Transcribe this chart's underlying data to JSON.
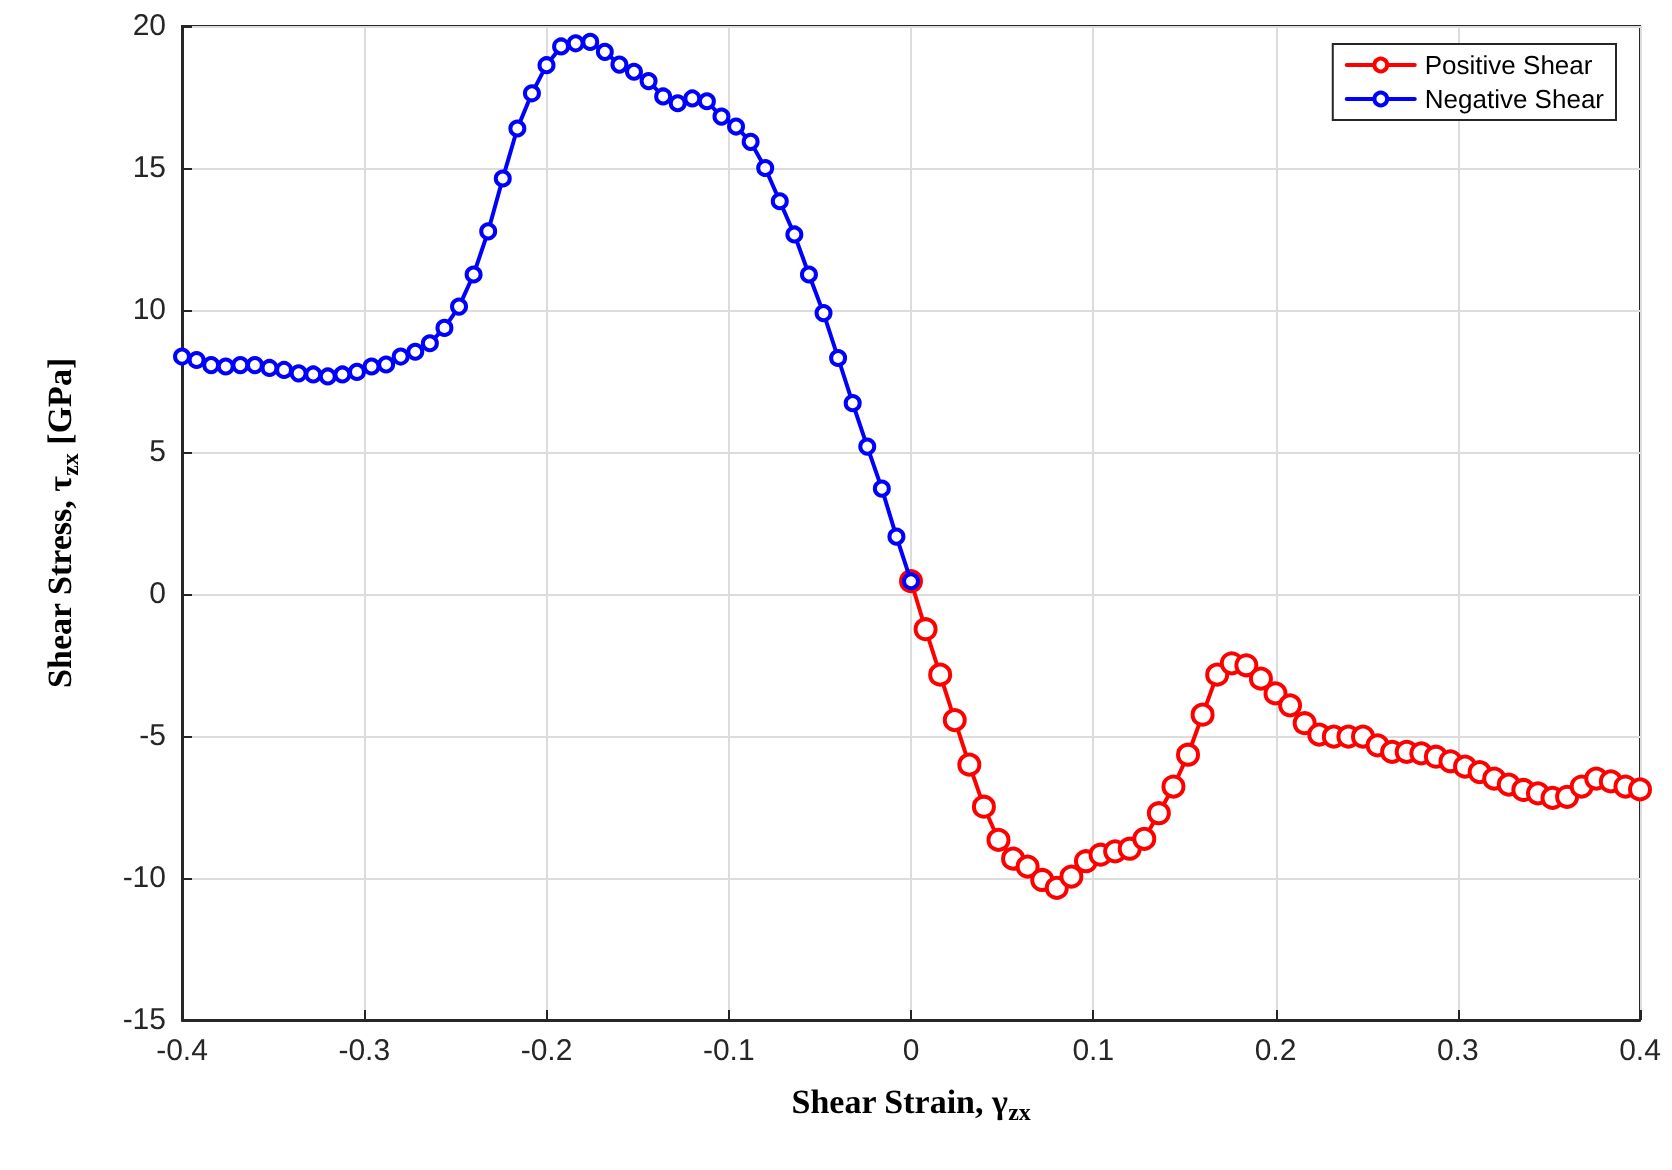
{
  "chart_data": {
    "type": "line",
    "xlabel": "Shear Strain, γ$_{zx}$",
    "ylabel": "Shear Stress, τ$_{zx}$ [GPa]",
    "xlim": [
      -0.4,
      0.4
    ],
    "xticks": [
      -0.4,
      -0.3,
      -0.2,
      -0.1,
      0,
      0.1,
      0.2,
      0.3,
      0.4
    ],
    "ylim": [
      -15,
      20
    ],
    "yticks": [
      -15,
      -10,
      -5,
      0,
      5,
      10,
      15,
      20
    ],
    "grid": true,
    "legend": "top right",
    "marker": "circle",
    "series": [
      {
        "name": "Positive Shear",
        "color": "#ff0000",
        "x": [
          0,
          0.008,
          0.016,
          0.024,
          0.032,
          0.04,
          0.048,
          0.056,
          0.064,
          0.072,
          0.08,
          0.088,
          0.096,
          0.104,
          0.112,
          0.12,
          0.128,
          0.136,
          0.144,
          0.152,
          0.16,
          0.168,
          0.176,
          0.184,
          0.192,
          0.2,
          0.208,
          0.216,
          0.224,
          0.232,
          0.24,
          0.248,
          0.256,
          0.264,
          0.272,
          0.28,
          0.288,
          0.296,
          0.304,
          0.312,
          0.32,
          0.328,
          0.336,
          0.344,
          0.352,
          0.36,
          0.368,
          0.376,
          0.384,
          0.392,
          0.4
        ],
        "values": [
          0.45,
          -1.24,
          -2.84,
          -4.44,
          -6.01,
          -7.49,
          -8.66,
          -9.32,
          -9.6,
          -10.07,
          -10.35,
          -9.95,
          -9.41,
          -9.18,
          -9.06,
          -8.97,
          -8.62,
          -7.72,
          -6.78,
          -5.66,
          -4.25,
          -2.84,
          -2.44,
          -2.51,
          -2.98,
          -3.5,
          -3.92,
          -4.55,
          -4.95,
          -5.02,
          -5.02,
          -5.02,
          -5.33,
          -5.56,
          -5.56,
          -5.61,
          -5.73,
          -5.89,
          -6.08,
          -6.27,
          -6.5,
          -6.71,
          -6.9,
          -7.02,
          -7.18,
          -7.14,
          -6.78,
          -6.5,
          -6.6,
          -6.78,
          -6.88
        ]
      },
      {
        "name": "Negative Shear",
        "color": "#0000ff",
        "x": [
          -0.4,
          -0.392,
          -0.384,
          -0.376,
          -0.368,
          -0.36,
          -0.352,
          -0.344,
          -0.336,
          -0.328,
          -0.32,
          -0.312,
          -0.304,
          -0.296,
          -0.288,
          -0.28,
          -0.272,
          -0.264,
          -0.256,
          -0.248,
          -0.24,
          -0.232,
          -0.224,
          -0.216,
          -0.208,
          -0.2,
          -0.192,
          -0.184,
          -0.176,
          -0.168,
          -0.16,
          -0.152,
          -0.144,
          -0.136,
          -0.128,
          -0.12,
          -0.112,
          -0.104,
          -0.096,
          -0.088,
          -0.08,
          -0.072,
          -0.064,
          -0.056,
          -0.048,
          -0.04,
          -0.032,
          -0.024,
          -0.016,
          -0.008,
          0
        ],
        "values": [
          8.36,
          8.24,
          8.06,
          8.01,
          8.06,
          8.06,
          7.96,
          7.89,
          7.77,
          7.73,
          7.66,
          7.73,
          7.82,
          8.01,
          8.08,
          8.36,
          8.53,
          8.83,
          9.37,
          10.12,
          11.25,
          12.77,
          14.63,
          16.39,
          17.63,
          18.62,
          19.28,
          19.39,
          19.44,
          19.09,
          18.64,
          18.39,
          18.06,
          17.52,
          17.28,
          17.45,
          17.35,
          16.81,
          16.46,
          15.92,
          15.0,
          13.83,
          12.66,
          11.25,
          9.89,
          8.31,
          6.72,
          5.19,
          3.71,
          2.02,
          0.45
        ]
      }
    ]
  }
}
